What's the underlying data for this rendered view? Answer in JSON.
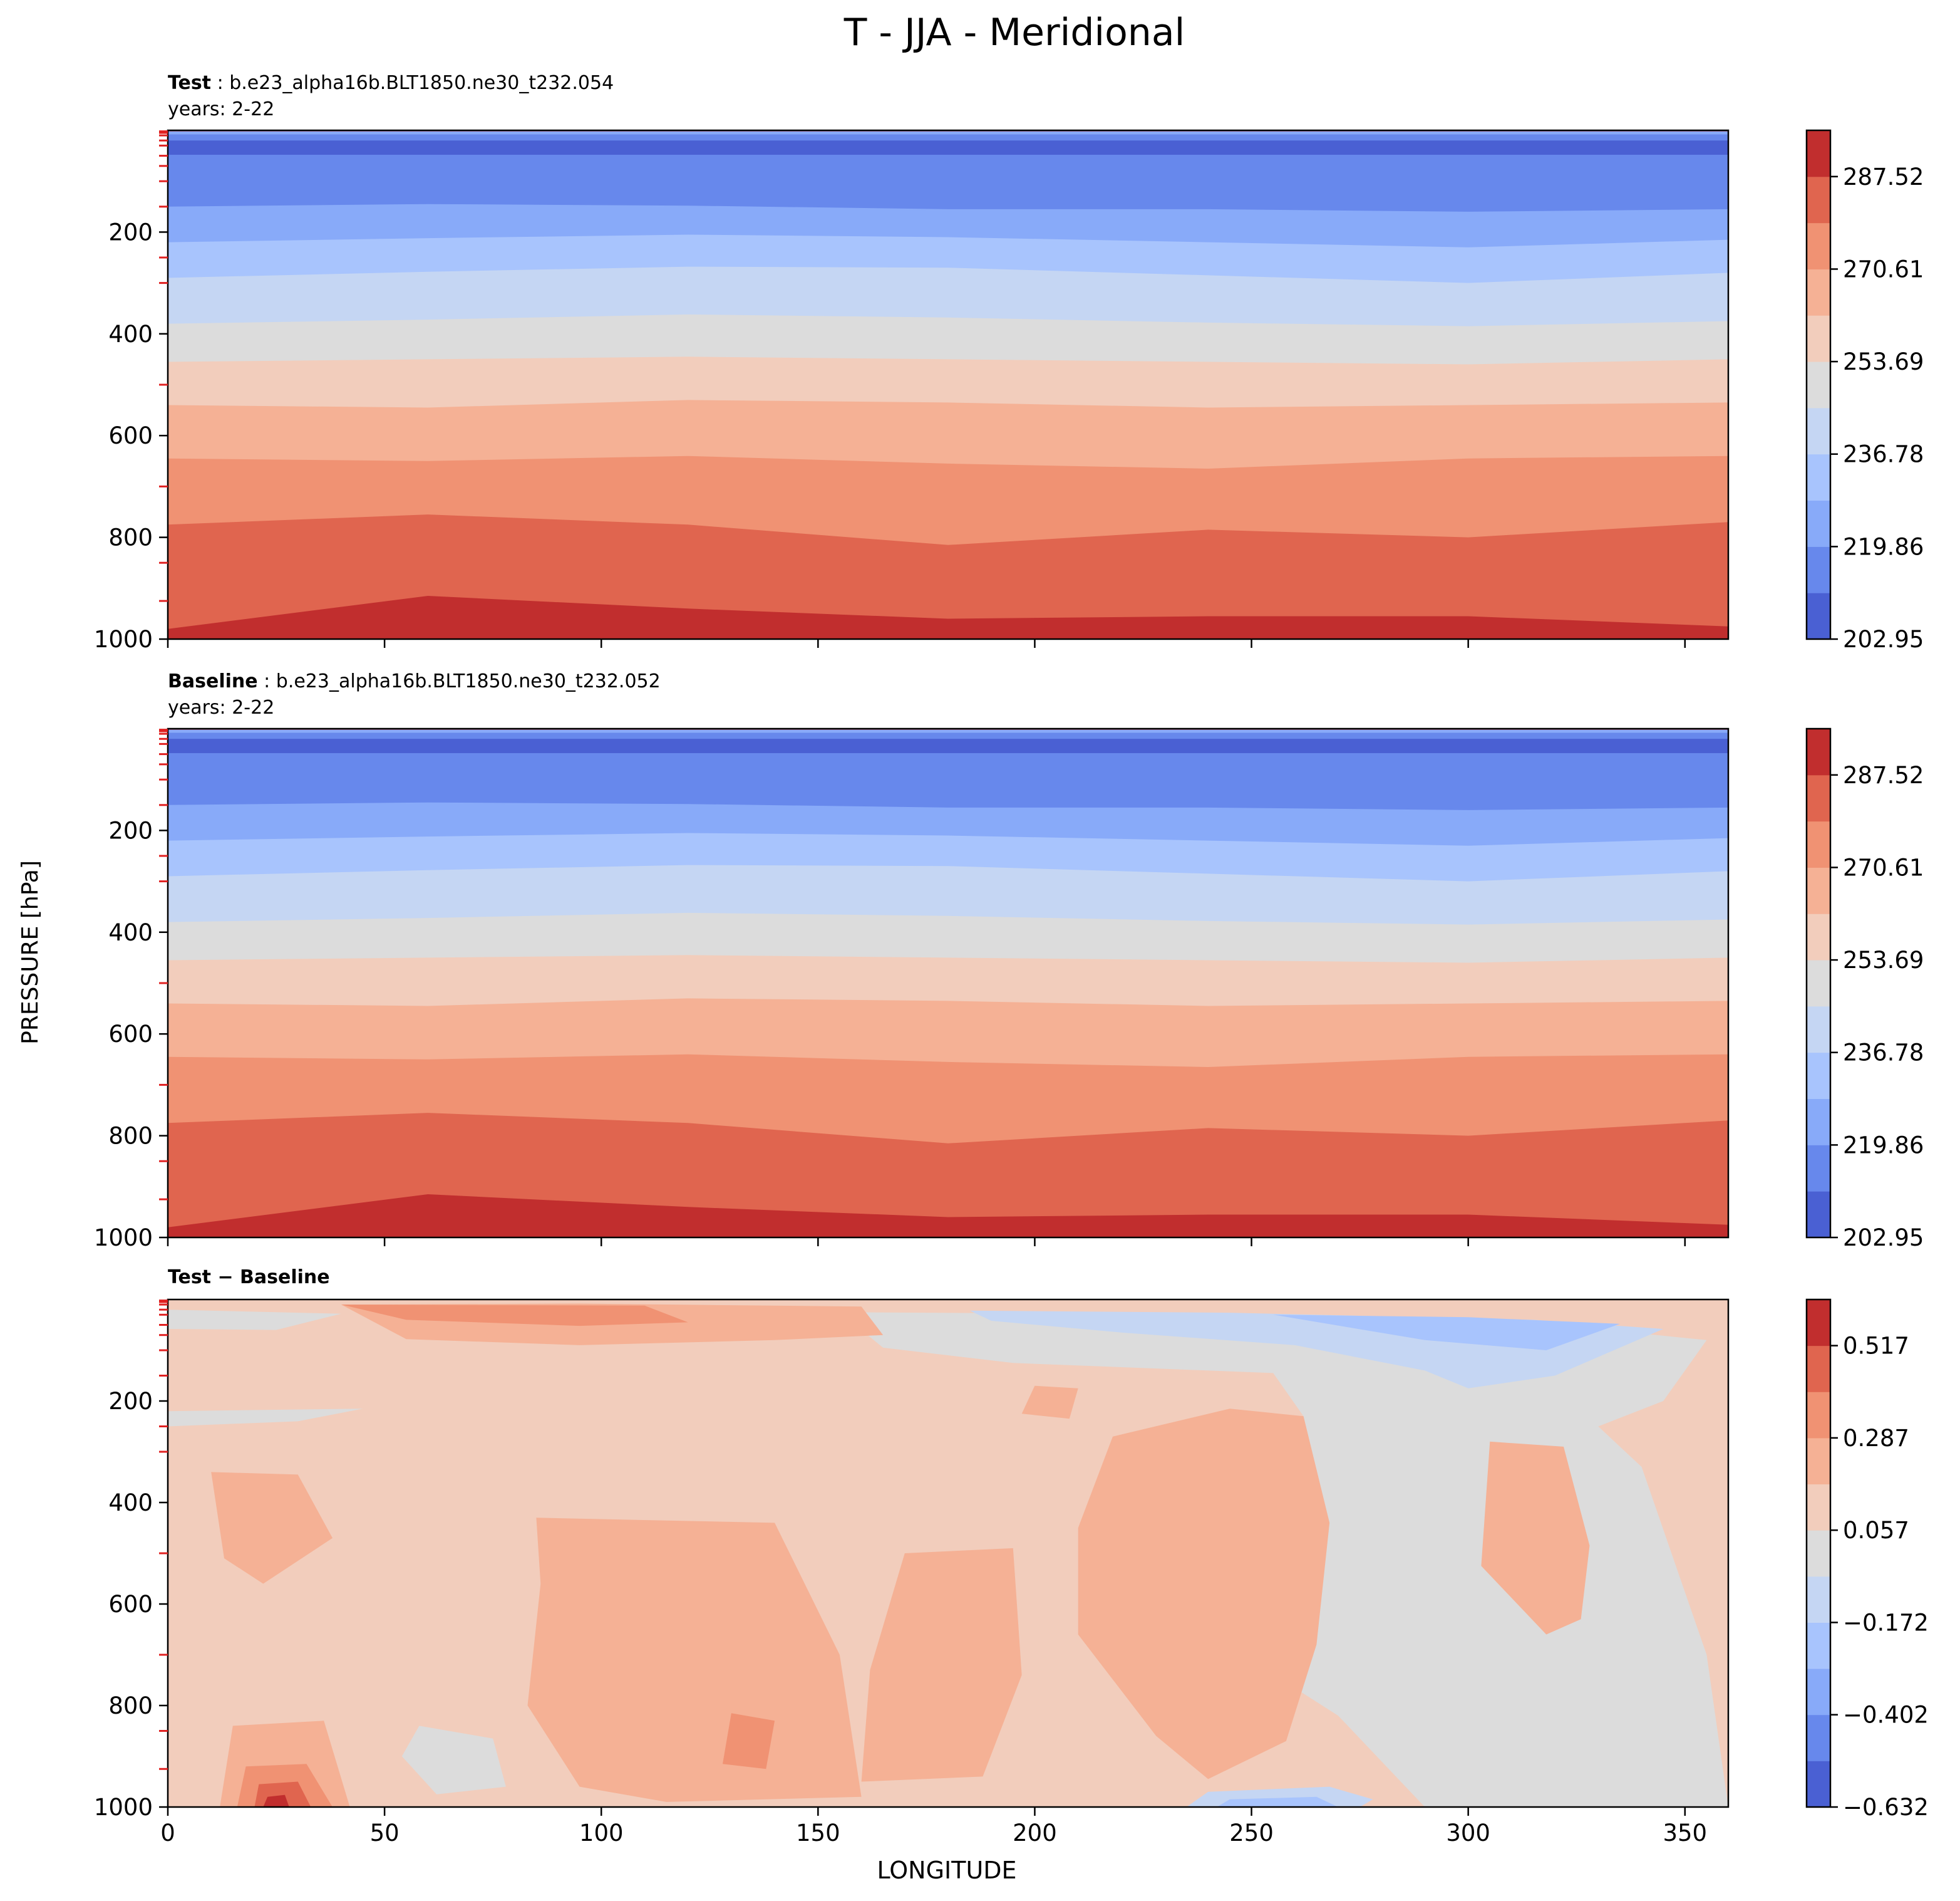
{
  "figure": {
    "title": "T - JJA - Meridional",
    "ylabel": "PRESSURE [hPa]",
    "xlabel": "LONGITUDE"
  },
  "panels": {
    "test": {
      "label_bold": "Test",
      "label_rest": " : b.e23_alpha16b.BLT1850.ne30_t232.054",
      "years": "years: 2-22"
    },
    "baseline": {
      "label_bold": "Baseline",
      "label_rest": " : b.e23_alpha16b.BLT1850.ne30_t232.052",
      "years": "years: 2-22"
    },
    "diff": {
      "label_bold": "Test − Baseline"
    }
  },
  "colors": {
    "seq": [
      "#4a60d3",
      "#6788ec",
      "#88aaf9",
      "#a8c4fd",
      "#c5d6f3",
      "#dcdcdc",
      "#f2cdbc",
      "#f5b195",
      "#f09273",
      "#e0654f",
      "#c12e2e"
    ]
  },
  "chart_data": [
    {
      "type": "contourf",
      "panel": "test",
      "x": [
        0,
        60,
        120,
        180,
        240,
        300,
        360
      ],
      "xlim": [
        0,
        360
      ],
      "ylim": [
        1000,
        0
      ],
      "yticks": [
        200,
        400,
        600,
        800,
        1000
      ],
      "levels_min": 202.95,
      "levels_max": 295.98,
      "colorbar_ticks": [
        "202.95",
        "219.86",
        "236.78",
        "253.69",
        "270.61",
        "287.52"
      ],
      "boundaries": [
        {
          "pressure": [
            2,
            2,
            2,
            2,
            2,
            2,
            2
          ]
        },
        {
          "pressure": [
            8,
            8,
            8,
            8,
            8,
            8,
            8
          ]
        },
        {
          "pressure": [
            20,
            20,
            20,
            20,
            20,
            20,
            20
          ]
        },
        {
          "pressure": [
            48,
            48,
            48,
            48,
            48,
            48,
            48
          ]
        },
        {
          "pressure": [
            150,
            145,
            148,
            155,
            155,
            160,
            155
          ]
        },
        {
          "pressure": [
            220,
            212,
            205,
            210,
            220,
            230,
            215
          ]
        },
        {
          "pressure": [
            290,
            278,
            268,
            270,
            285,
            300,
            280
          ]
        },
        {
          "pressure": [
            380,
            372,
            362,
            368,
            378,
            385,
            375
          ]
        },
        {
          "pressure": [
            455,
            450,
            445,
            450,
            455,
            460,
            450
          ]
        },
        {
          "pressure": [
            540,
            545,
            530,
            535,
            545,
            540,
            535
          ]
        },
        {
          "pressure": [
            645,
            650,
            640,
            655,
            665,
            645,
            640
          ]
        },
        {
          "pressure": [
            775,
            755,
            775,
            815,
            785,
            800,
            770
          ]
        },
        {
          "pressure": [
            980,
            915,
            940,
            960,
            955,
            955,
            975
          ]
        }
      ]
    },
    {
      "type": "contourf",
      "panel": "baseline",
      "x": [
        0,
        60,
        120,
        180,
        240,
        300,
        360
      ],
      "xlim": [
        0,
        360
      ],
      "ylim": [
        1000,
        0
      ],
      "yticks": [
        200,
        400,
        600,
        800,
        1000
      ],
      "levels_min": 202.95,
      "levels_max": 295.98,
      "colorbar_ticks": [
        "202.95",
        "219.86",
        "236.78",
        "253.69",
        "270.61",
        "287.52"
      ],
      "boundaries": [
        {
          "pressure": [
            2,
            2,
            2,
            2,
            2,
            2,
            2
          ]
        },
        {
          "pressure": [
            8,
            8,
            8,
            8,
            8,
            8,
            8
          ]
        },
        {
          "pressure": [
            20,
            20,
            20,
            20,
            20,
            20,
            20
          ]
        },
        {
          "pressure": [
            48,
            48,
            48,
            48,
            48,
            48,
            48
          ]
        },
        {
          "pressure": [
            150,
            145,
            148,
            155,
            155,
            160,
            155
          ]
        },
        {
          "pressure": [
            220,
            212,
            205,
            210,
            220,
            230,
            215
          ]
        },
        {
          "pressure": [
            290,
            278,
            268,
            270,
            285,
            300,
            280
          ]
        },
        {
          "pressure": [
            380,
            372,
            362,
            368,
            378,
            385,
            375
          ]
        },
        {
          "pressure": [
            455,
            450,
            445,
            450,
            455,
            460,
            450
          ]
        },
        {
          "pressure": [
            540,
            545,
            530,
            535,
            545,
            540,
            535
          ]
        },
        {
          "pressure": [
            645,
            650,
            640,
            655,
            665,
            645,
            640
          ]
        },
        {
          "pressure": [
            775,
            755,
            775,
            815,
            785,
            800,
            770
          ]
        },
        {
          "pressure": [
            980,
            915,
            940,
            960,
            955,
            955,
            975
          ]
        }
      ]
    },
    {
      "type": "contourf",
      "panel": "diff",
      "xlim": [
        0,
        360
      ],
      "ylim": [
        1000,
        0
      ],
      "xticks": [
        0,
        50,
        100,
        150,
        200,
        250,
        300,
        350
      ],
      "yticks": [
        200,
        400,
        600,
        800,
        1000
      ],
      "levels_min": -0.632,
      "levels_max": 0.632,
      "colorbar_ticks": [
        "−0.632",
        "−0.402",
        "−0.172",
        "0.057",
        "0.287",
        "0.517"
      ],
      "background_level": 6,
      "regions": [
        {
          "level": 5,
          "points": [
            [
              0,
              20
            ],
            [
              40,
              28
            ],
            [
              25,
              60
            ],
            [
              0,
              58
            ]
          ]
        },
        {
          "level": 5,
          "points": [
            [
              0,
              220
            ],
            [
              45,
              215
            ],
            [
              30,
              240
            ],
            [
              0,
              250
            ]
          ]
        },
        {
          "level": 5,
          "points": [
            [
              155,
              25
            ],
            [
              250,
              30
            ],
            [
              320,
              50
            ],
            [
              355,
              80
            ],
            [
              345,
              200
            ],
            [
              330,
              250
            ],
            [
              340,
              330
            ],
            [
              355,
              700
            ],
            [
              360,
              1000
            ],
            [
              290,
              1000
            ],
            [
              270,
              820
            ],
            [
              248,
              700
            ],
            [
              262,
              230
            ],
            [
              255,
              145
            ],
            [
              195,
              125
            ],
            [
              165,
              95
            ]
          ]
        },
        {
          "level": 5,
          "points": [
            [
              58,
              840
            ],
            [
              75,
              865
            ],
            [
              78,
              960
            ],
            [
              62,
              975
            ],
            [
              54,
              900
            ]
          ]
        },
        {
          "level": 4,
          "points": [
            [
              185,
              22
            ],
            [
              245,
              26
            ],
            [
              315,
              40
            ],
            [
              345,
              58
            ],
            [
              320,
              150
            ],
            [
              300,
              175
            ],
            [
              290,
              140
            ],
            [
              260,
              90
            ],
            [
              220,
              65
            ],
            [
              190,
              42
            ]
          ]
        },
        {
          "level": 3,
          "points": [
            [
              255,
              30
            ],
            [
              300,
              35
            ],
            [
              335,
              48
            ],
            [
              318,
              100
            ],
            [
              290,
              80
            ]
          ]
        },
        {
          "level": 4,
          "points": [
            [
              240,
              970
            ],
            [
              268,
              960
            ],
            [
              278,
              985
            ],
            [
              275,
              1000
            ],
            [
              235,
              1000
            ]
          ]
        },
        {
          "level": 3,
          "points": [
            [
              245,
              985
            ],
            [
              265,
              980
            ],
            [
              270,
              1000
            ],
            [
              242,
              1000
            ]
          ]
        },
        {
          "level": 7,
          "points": [
            [
              40,
              10
            ],
            [
              95,
              8
            ],
            [
              160,
              14
            ],
            [
              165,
              70
            ],
            [
              140,
              80
            ],
            [
              95,
              90
            ],
            [
              55,
              78
            ]
          ]
        },
        {
          "level": 8,
          "points": [
            [
              40,
              10
            ],
            [
              110,
              12
            ],
            [
              120,
              45
            ],
            [
              95,
              52
            ],
            [
              55,
              40
            ]
          ]
        },
        {
          "level": 7,
          "points": [
            [
              10,
              340
            ],
            [
              30,
              345
            ],
            [
              38,
              470
            ],
            [
              22,
              560
            ],
            [
              13,
              510
            ]
          ]
        },
        {
          "level": 7,
          "points": [
            [
              85,
              430
            ],
            [
              140,
              440
            ],
            [
              155,
              700
            ],
            [
              160,
              980
            ],
            [
              115,
              990
            ],
            [
              95,
              960
            ],
            [
              83,
              800
            ],
            [
              86,
              560
            ]
          ]
        },
        {
          "level": 7,
          "points": [
            [
              170,
              500
            ],
            [
              195,
              490
            ],
            [
              197,
              740
            ],
            [
              188,
              940
            ],
            [
              160,
              950
            ],
            [
              162,
              730
            ]
          ]
        },
        {
          "level": 7,
          "points": [
            [
              218,
              270
            ],
            [
              245,
              215
            ],
            [
              262,
              230
            ],
            [
              268,
              440
            ],
            [
              265,
              680
            ],
            [
              258,
              870
            ],
            [
              240,
              945
            ],
            [
              228,
              860
            ],
            [
              210,
              660
            ],
            [
              210,
              450
            ]
          ]
        },
        {
          "level": 7,
          "points": [
            [
              305,
              280
            ],
            [
              322,
              290
            ],
            [
              328,
              485
            ],
            [
              326,
              630
            ],
            [
              318,
              660
            ],
            [
              303,
              525
            ]
          ]
        },
        {
          "level": 7,
          "points": [
            [
              15,
              840
            ],
            [
              36,
              830
            ],
            [
              42,
              1000
            ],
            [
              12,
              1000
            ]
          ]
        },
        {
          "level": 8,
          "points": [
            [
              18,
              920
            ],
            [
              32,
              915
            ],
            [
              38,
              1000
            ],
            [
              16,
              1000
            ]
          ]
        },
        {
          "level": 9,
          "points": [
            [
              21,
              955
            ],
            [
              30,
              950
            ],
            [
              33,
              1000
            ],
            [
              20,
              1000
            ]
          ]
        },
        {
          "level": 10,
          "points": [
            [
              23,
              980
            ],
            [
              27,
              976
            ],
            [
              28,
              1000
            ],
            [
              22,
              1000
            ]
          ]
        },
        {
          "level": 8,
          "points": [
            [
              130,
              815
            ],
            [
              140,
              830
            ],
            [
              138,
              925
            ],
            [
              128,
              915
            ]
          ]
        },
        {
          "level": 7,
          "points": [
            [
              200,
              170
            ],
            [
              210,
              175
            ],
            [
              208,
              235
            ],
            [
              197,
              225
            ]
          ]
        }
      ]
    }
  ]
}
